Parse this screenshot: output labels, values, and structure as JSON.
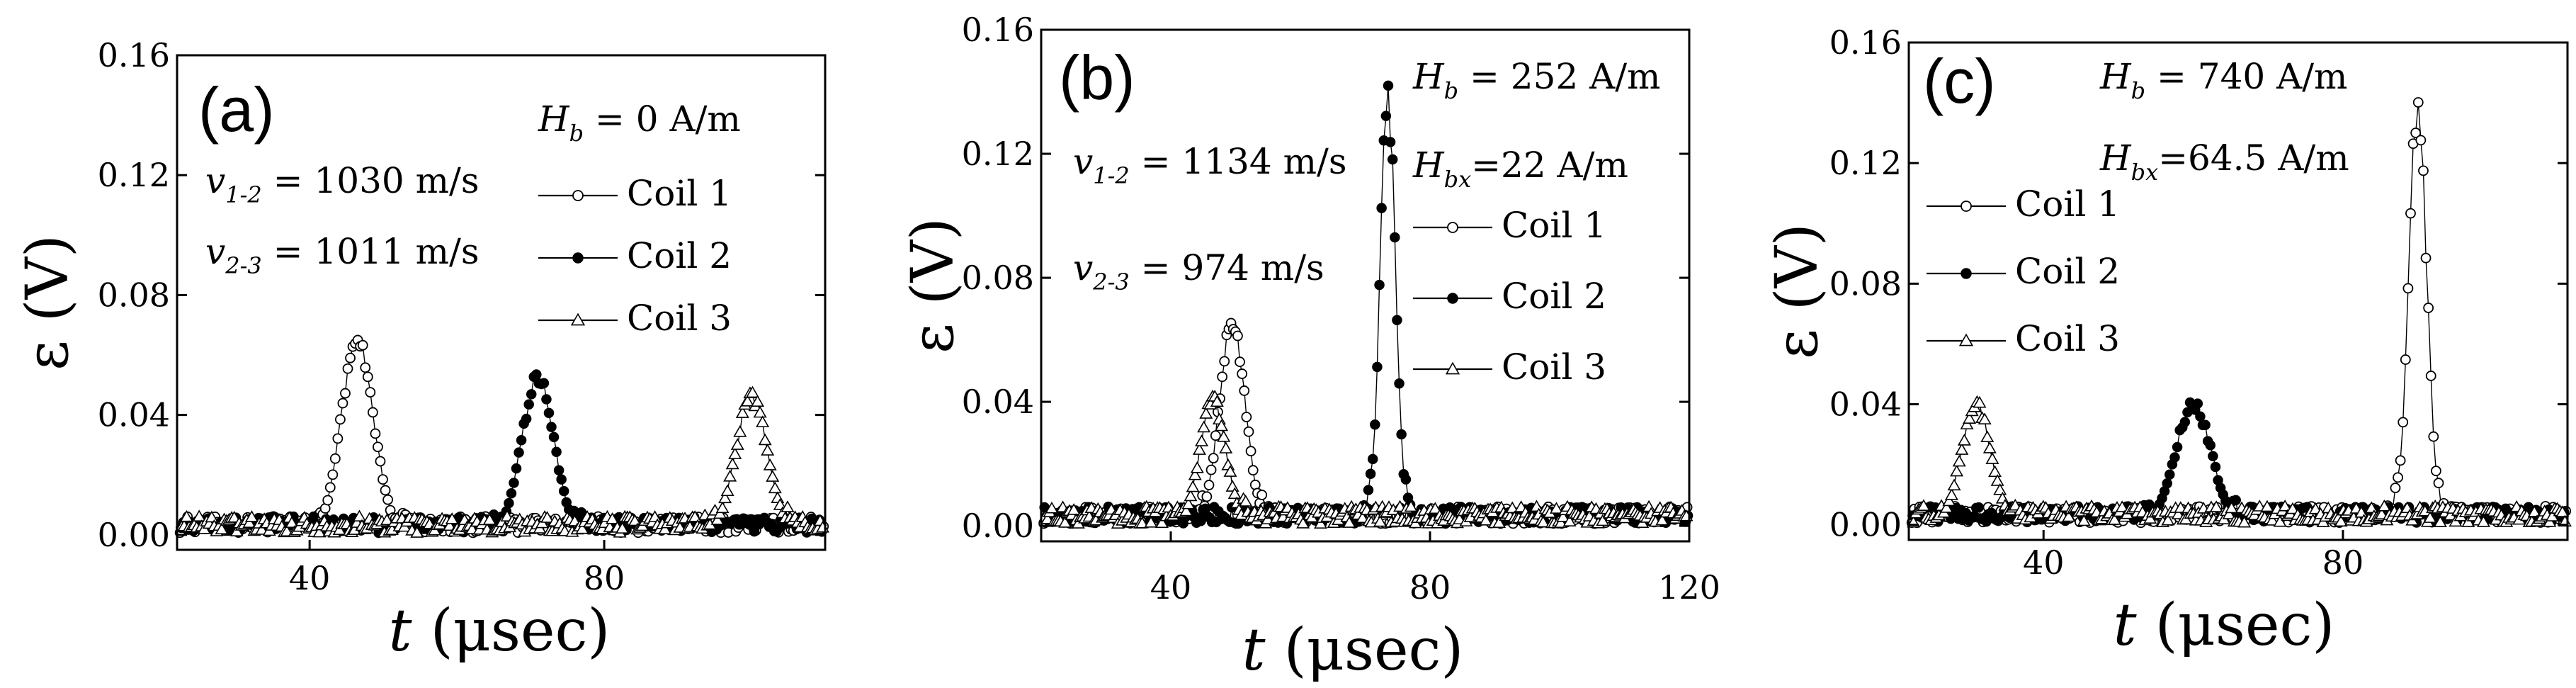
{
  "chart_data": [
    {
      "type": "scatter",
      "panel_label": "(a)",
      "xlabel": "t",
      "xlabel_unit": "(μsec)",
      "ylabel": "ε (V)",
      "xlim": [
        22,
        110
      ],
      "ylim": [
        -0.005,
        0.16
      ],
      "xticks": [
        40,
        80
      ],
      "yticks": [
        0.0,
        0.04,
        0.08,
        0.12,
        0.16
      ],
      "ytick_labels": [
        "0.00",
        "0.04",
        "0.08",
        "0.12",
        "0.16"
      ],
      "field_label": "H",
      "field_sub": "b",
      "field_value": " = 0 A/m",
      "bx_label": "",
      "bx_sub": "",
      "bx_value": "",
      "velocities": [
        {
          "label": "v",
          "sub": "1-2",
          "value": " = 1030 m/s"
        },
        {
          "label": "v",
          "sub": "2-3",
          "value": " = 1011 m/s"
        }
      ],
      "series": [
        {
          "name": "Coil 1",
          "marker": "circle-open",
          "peak_t": 46.5,
          "amp": 0.067,
          "width": 2.2
        },
        {
          "name": "Coil 2",
          "marker": "circle-filled",
          "peak_t": 71.0,
          "amp": 0.054,
          "width": 2.2
        },
        {
          "name": "Coil 3",
          "marker": "triangle-open",
          "peak_t": 100.0,
          "amp": 0.047,
          "width": 2.2
        }
      ]
    },
    {
      "type": "scatter",
      "panel_label": "(b)",
      "xlabel": "t",
      "xlabel_unit": "(μsec)",
      "ylabel": "ε (V)",
      "xlim": [
        20,
        120
      ],
      "ylim": [
        -0.005,
        0.16
      ],
      "xticks": [
        40,
        80,
        120
      ],
      "yticks": [
        0.0,
        0.04,
        0.08,
        0.12,
        0.16
      ],
      "ytick_labels": [
        "0.00",
        "0.04",
        "0.08",
        "0.12",
        "0.16"
      ],
      "field_label": "H",
      "field_sub": "b",
      "field_value": " = 252 A/m",
      "bx_label": "H",
      "bx_sub": "bx",
      "bx_value": "=22 A/m",
      "velocities": [
        {
          "label": "v",
          "sub": "1-2",
          "value": " = 1134 m/s"
        },
        {
          "label": "v",
          "sub": "2-3",
          "value": " = 974 m/s"
        }
      ],
      "series": [
        {
          "name": "Coil 1",
          "marker": "circle-open",
          "peak_t": 49.5,
          "amp": 0.068,
          "width": 2.0
        },
        {
          "name": "Coil 2",
          "marker": "circle-filled",
          "peak_t": 73.5,
          "amp": 0.14,
          "width": 1.2
        },
        {
          "name": "Coil 3",
          "marker": "triangle-open",
          "peak_t": 46.5,
          "amp": 0.042,
          "width": 2.0
        }
      ]
    },
    {
      "type": "scatter",
      "panel_label": "(c)",
      "xlabel": "t",
      "xlabel_unit": "(μsec)",
      "ylabel": "ε (V)",
      "xlim": [
        22,
        110
      ],
      "ylim": [
        -0.005,
        0.16
      ],
      "xticks": [
        40,
        80
      ],
      "yticks": [
        0.0,
        0.04,
        0.08,
        0.12,
        0.16
      ],
      "ytick_labels": [
        "0.00",
        "0.04",
        "0.08",
        "0.12",
        "0.16"
      ],
      "field_label": "H",
      "field_sub": "b",
      "field_value": " = 740 A/m",
      "bx_label": "H",
      "bx_sub": "bx",
      "bx_value": "=64.5 A/m",
      "velocities": [],
      "series": [
        {
          "name": "Coil 1",
          "marker": "circle-open",
          "peak_t": 90.0,
          "amp": 0.143,
          "width": 1.2
        },
        {
          "name": "Coil 2",
          "marker": "circle-filled",
          "peak_t": 60.0,
          "amp": 0.041,
          "width": 2.4
        },
        {
          "name": "Coil 3",
          "marker": "triangle-open",
          "peak_t": 31.0,
          "amp": 0.041,
          "width": 2.0
        }
      ]
    }
  ]
}
